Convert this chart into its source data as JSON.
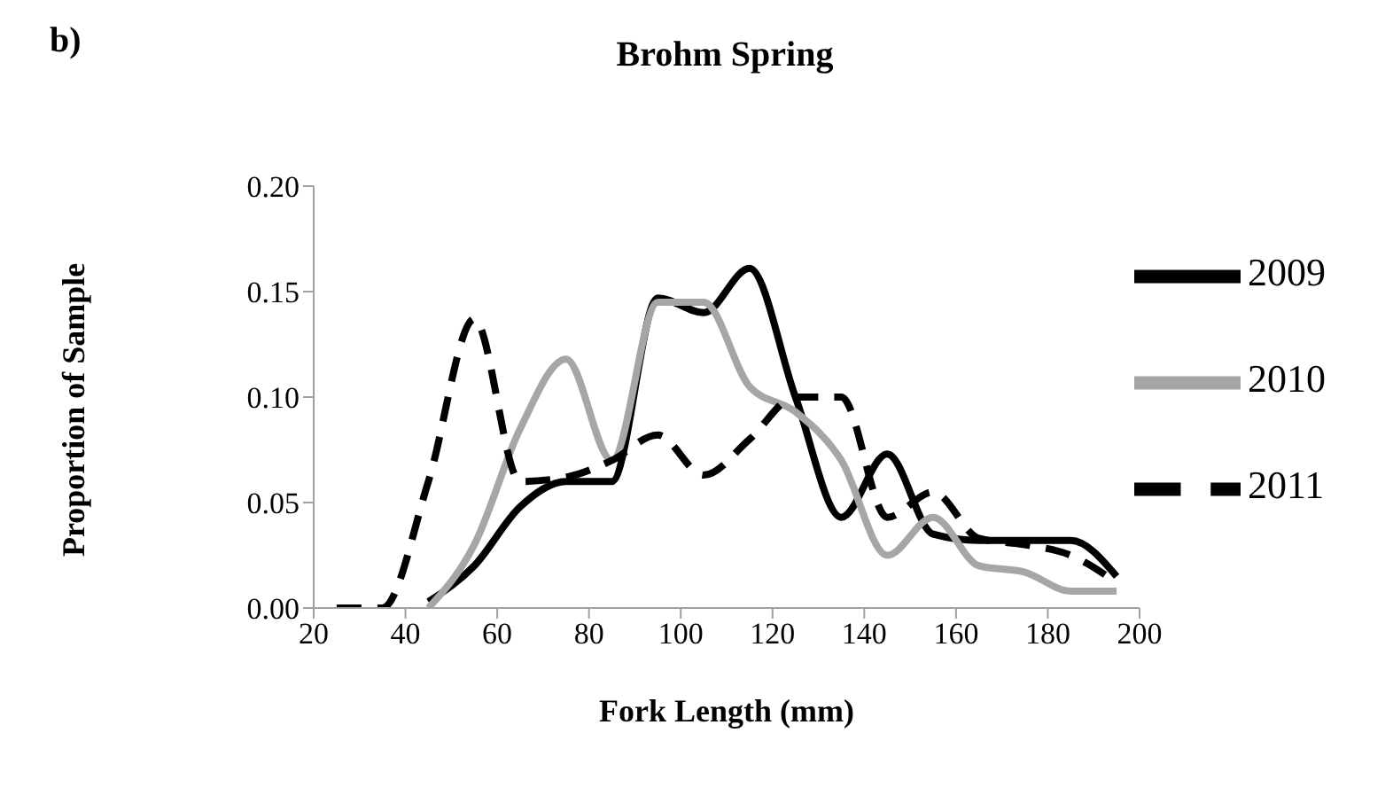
{
  "chart_data": {
    "type": "line",
    "title": "Brohm Spring",
    "xlabel": "Fork Length (mm)",
    "ylabel": "Proportion of Sample",
    "annotations": [
      "b)"
    ],
    "x": [
      25,
      35,
      45,
      55,
      65,
      75,
      85,
      95,
      105,
      115,
      125,
      135,
      145,
      155,
      165,
      175,
      185,
      195
    ],
    "series": [
      {
        "name": "2009",
        "color": "#000000",
        "line_style": "solid",
        "values": [
          null,
          null,
          0.003,
          0.02,
          0.048,
          0.06,
          0.06,
          0.147,
          0.14,
          0.161,
          0.1,
          0.043,
          0.073,
          0.035,
          0.032,
          0.032,
          0.032,
          0.015
        ]
      },
      {
        "name": "2010",
        "color": "#a6a6a6",
        "line_style": "solid",
        "values": [
          null,
          null,
          0,
          0.03,
          0.085,
          0.118,
          0.07,
          0.145,
          0.145,
          0.105,
          0.093,
          0.07,
          0.025,
          0.043,
          0.02,
          0.017,
          0.008,
          0.008
        ]
      },
      {
        "name": "2011",
        "color": "#000000",
        "line_style": "dashed",
        "values": [
          0,
          0,
          0.06,
          0.137,
          0.06,
          0.062,
          0.07,
          0.082,
          0.063,
          0.08,
          0.1,
          0.1,
          0.043,
          0.055,
          0.033,
          0.03,
          0.025,
          0.012
        ]
      }
    ],
    "xlim": [
      20,
      200
    ],
    "xticks": [
      20,
      40,
      60,
      80,
      100,
      120,
      140,
      160,
      180,
      200
    ],
    "ylim": [
      0,
      0.2
    ],
    "yticks": [
      {
        "value": 0,
        "label": "0.00"
      },
      {
        "value": 0.05,
        "label": "0.05"
      },
      {
        "value": 0.1,
        "label": "0.10"
      },
      {
        "value": 0.15,
        "label": "0.15"
      },
      {
        "value": 0.2,
        "label": "0.20"
      }
    ],
    "grid": false,
    "legend": "top right",
    "marker": "none"
  }
}
